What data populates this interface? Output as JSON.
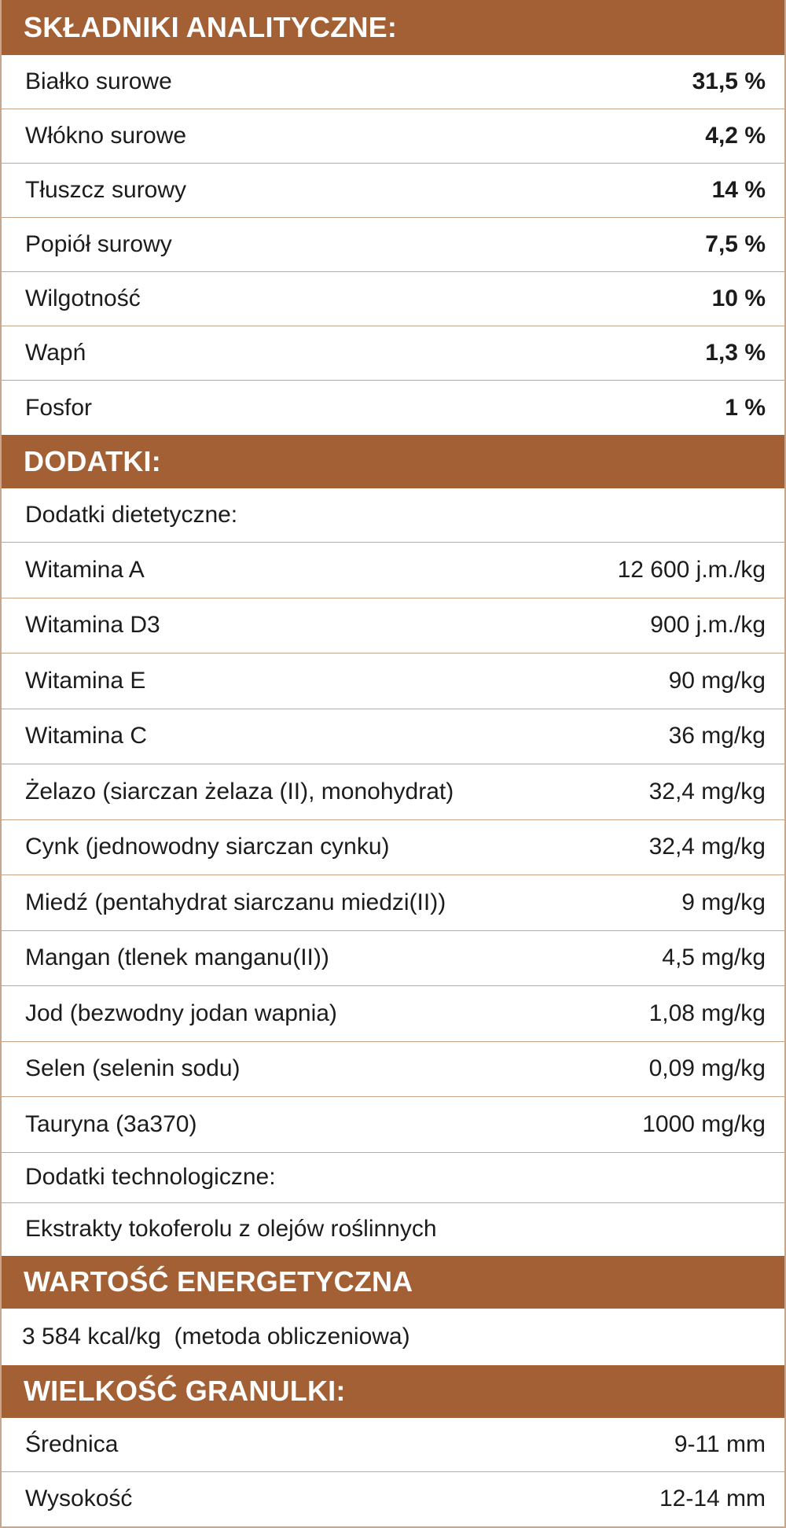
{
  "colors": {
    "header_bg": "#a36035",
    "border": "#c9a58a"
  },
  "analytic": {
    "title": "SKŁADNIKI ANALITYCZNE:",
    "rows": [
      {
        "label": "Białko surowe",
        "value": "31,5 %"
      },
      {
        "label": "Włókno surowe",
        "value": "4,2 %"
      },
      {
        "label": "Tłuszcz surowy",
        "value": "14 %"
      },
      {
        "label": "Popiół surowy",
        "value": "7,5 %"
      },
      {
        "label": "Wilgotność",
        "value": "10 %"
      },
      {
        "label": "Wapń",
        "value": "1,3 %"
      },
      {
        "label": "Fosfor",
        "value": "1 %"
      }
    ]
  },
  "additives": {
    "title": "DODATKI:",
    "dietary_label": "Dodatki dietetyczne:",
    "rows": [
      {
        "label": "Witamina A",
        "value": "12 600 j.m./kg"
      },
      {
        "label": "Witamina D3",
        "value": "900 j.m./kg"
      },
      {
        "label": "Witamina E",
        "value": "90 mg/kg"
      },
      {
        "label": "Witamina C",
        "value": "36 mg/kg"
      },
      {
        "label": "Żelazo (siarczan żelaza (II), monohydrat)",
        "value": "32,4 mg/kg"
      },
      {
        "label": "Cynk (jednowodny siarczan cynku)",
        "value": "32,4 mg/kg"
      },
      {
        "label": "Miedź (pentahydrat siarczanu miedzi(II))",
        "value": "9 mg/kg"
      },
      {
        "label": "Mangan (tlenek manganu(II))",
        "value": "4,5 mg/kg"
      },
      {
        "label": "Jod (bezwodny jodan wapnia)",
        "value": "1,08 mg/kg"
      },
      {
        "label": "Selen (selenin sodu)",
        "value": "0,09 mg/kg"
      },
      {
        "label": "Tauryna (3a370)",
        "value": "1000 mg/kg"
      }
    ],
    "tech_label": "Dodatki technologiczne:",
    "tech_value": "Ekstrakty tokoferolu z olejów roślinnych"
  },
  "energy": {
    "title": "WARTOŚĆ ENERGETYCZNA",
    "value": "3 584 kcal/kg  (metoda obliczeniowa)"
  },
  "granule": {
    "title": "WIELKOŚĆ GRANULKI:",
    "rows": [
      {
        "label": "Średnica",
        "value": "9-11 mm"
      },
      {
        "label": "Wysokość",
        "value": "12-14 mm"
      }
    ]
  }
}
